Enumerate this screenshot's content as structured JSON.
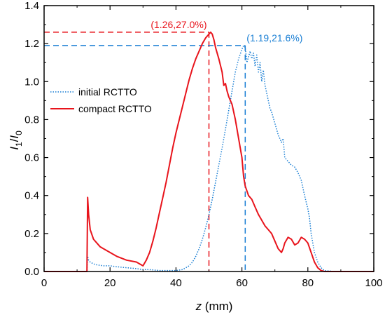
{
  "chart_data": {
    "type": "line",
    "title": "",
    "xlabel": {
      "var": "z",
      "unit": " (mm)"
    },
    "ylabel": {
      "a": "I",
      "a_sub": "1",
      "sep": "/",
      "b": "I",
      "b_sub": "0"
    },
    "xlim": [
      0,
      100
    ],
    "ylim": [
      0,
      1.4
    ],
    "x_ticks": [
      0,
      20,
      40,
      60,
      80,
      100
    ],
    "y_ticks": [
      0.0,
      0.2,
      0.4,
      0.6,
      0.8,
      1.0,
      1.2,
      1.4
    ],
    "x_tick_labels": [
      "0",
      "20",
      "40",
      "60",
      "80",
      "100"
    ],
    "y_tick_labels": [
      "0.0",
      "0.2",
      "0.4",
      "0.6",
      "0.8",
      "1.0",
      "1.2",
      "1.4"
    ],
    "grid": false,
    "legend_position": "middle-left",
    "colors": {
      "red": "#e8141c",
      "blue": "#1a7fd4",
      "axis": "#000000"
    },
    "series": [
      {
        "name": "initial RCTTO",
        "color": "#1a7fd4",
        "style": "dotted",
        "x": [
          0,
          13,
          13.2,
          13.5,
          14,
          15,
          16,
          18,
          20,
          22,
          25,
          28,
          30,
          32,
          35,
          38,
          40,
          42,
          44,
          45,
          46,
          47,
          48,
          49,
          50,
          51,
          52,
          53,
          54,
          55,
          56,
          57,
          58,
          59,
          60,
          60.5,
          61,
          61.5,
          62,
          62.5,
          63,
          63.5,
          64,
          64.5,
          65,
          65.5,
          66,
          66.5,
          67,
          68,
          68.5,
          69,
          70,
          71,
          72,
          72.5,
          73,
          74,
          75,
          76,
          77,
          78,
          79,
          80,
          80.5,
          81,
          82,
          83,
          84,
          85,
          88,
          90,
          95,
          100
        ],
        "y": [
          0,
          0,
          0.08,
          0.06,
          0.05,
          0.04,
          0.035,
          0.03,
          0.03,
          0.025,
          0.02,
          0.015,
          0.01,
          0.01,
          0.005,
          0.005,
          0.005,
          0.01,
          0.03,
          0.05,
          0.08,
          0.12,
          0.17,
          0.23,
          0.3,
          0.38,
          0.47,
          0.56,
          0.65,
          0.75,
          0.85,
          0.95,
          1.05,
          1.12,
          1.17,
          1.19,
          1.18,
          1.1,
          1.13,
          1.16,
          1.12,
          1.15,
          1.08,
          1.14,
          1.05,
          1.1,
          1.0,
          1.06,
          0.98,
          0.9,
          0.86,
          0.84,
          0.78,
          0.72,
          0.68,
          0.7,
          0.6,
          0.58,
          0.56,
          0.55,
          0.52,
          0.48,
          0.4,
          0.33,
          0.28,
          0.2,
          0.1,
          0.05,
          0.02,
          0.005,
          0,
          0,
          0,
          0
        ]
      },
      {
        "name": "compact RCTTO",
        "color": "#e8141c",
        "style": "solid",
        "x": [
          0,
          13,
          13.2,
          13.5,
          14,
          15,
          16,
          17,
          18,
          20,
          22,
          25,
          28,
          29,
          30,
          31,
          32,
          33,
          34,
          35,
          36,
          37,
          38,
          39,
          40,
          41,
          42,
          43,
          44,
          45,
          46,
          47,
          48,
          49,
          50,
          50.5,
          51,
          51.5,
          52,
          53,
          54,
          54.5,
          55,
          55.5,
          56,
          57,
          58,
          59,
          60,
          60.5,
          61,
          62,
          63,
          64,
          65,
          66,
          67,
          68,
          69,
          70,
          71,
          72,
          72.5,
          73,
          74,
          75,
          76,
          77,
          78,
          79,
          80,
          81,
          82,
          83,
          84,
          85,
          88,
          90,
          100
        ],
        "y": [
          0,
          0,
          0.39,
          0.3,
          0.22,
          0.17,
          0.15,
          0.13,
          0.12,
          0.1,
          0.08,
          0.06,
          0.05,
          0.04,
          0.03,
          0.06,
          0.1,
          0.16,
          0.23,
          0.31,
          0.39,
          0.47,
          0.56,
          0.65,
          0.73,
          0.8,
          0.87,
          0.94,
          1.01,
          1.07,
          1.12,
          1.16,
          1.2,
          1.23,
          1.25,
          1.26,
          1.25,
          1.22,
          1.18,
          1.12,
          1.05,
          0.98,
          0.99,
          0.95,
          0.92,
          0.88,
          0.8,
          0.7,
          0.6,
          0.5,
          0.45,
          0.4,
          0.38,
          0.34,
          0.3,
          0.27,
          0.24,
          0.22,
          0.2,
          0.16,
          0.12,
          0.1,
          0.12,
          0.15,
          0.18,
          0.17,
          0.14,
          0.15,
          0.18,
          0.17,
          0.15,
          0.1,
          0.05,
          0.02,
          0.005,
          0,
          0,
          0,
          0
        ]
      }
    ],
    "annotations": [
      {
        "text": "(1.26,27.0%)",
        "x": 50,
        "y": 1.26,
        "color": "#e8141c"
      },
      {
        "text": "(1.19,21.6%)",
        "x": 61,
        "y": 1.19,
        "color": "#1a7fd4"
      }
    ]
  }
}
